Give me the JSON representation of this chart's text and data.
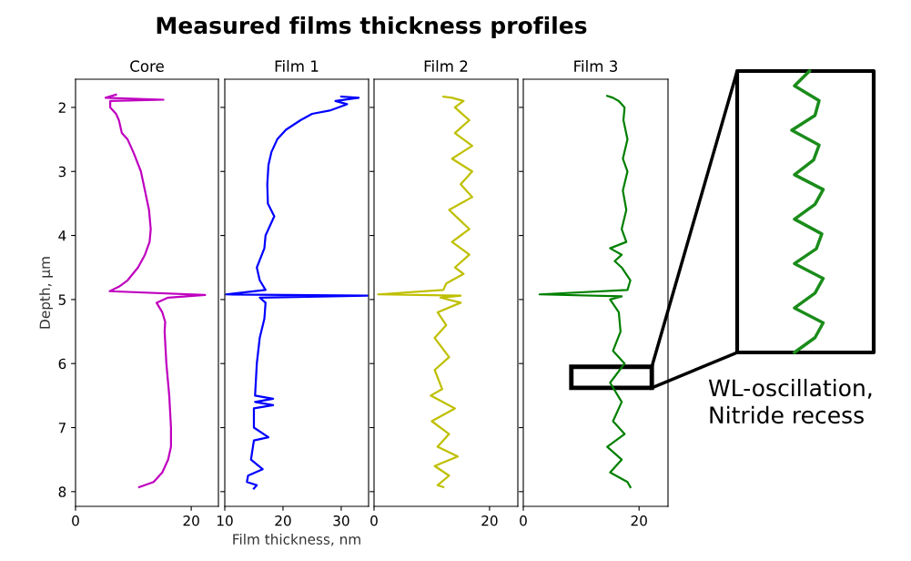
{
  "chart_data": [
    {
      "type": "line",
      "orientation": "horizontal",
      "title": "Core",
      "ylabel": "Depth, μm",
      "annotations": [
        "Measured films thickness profiles"
      ],
      "xlim": [
        0,
        24.7
      ],
      "xticks": [
        0,
        20
      ],
      "ylim": [
        8.23,
        1.56
      ],
      "yticks": [
        2,
        3,
        4,
        5,
        6,
        7,
        8
      ],
      "grid": false,
      "series": [
        {
          "color": "#bf00bf",
          "x": [
            1.8,
            1.85,
            1.88,
            1.9,
            2.0,
            2.1,
            2.2,
            2.4,
            2.5,
            2.7,
            3.0,
            3.3,
            3.6,
            3.9,
            4.1,
            4.3,
            4.5,
            4.7,
            4.8,
            4.87,
            4.93,
            4.97,
            5.05,
            5.2,
            5.35,
            5.5,
            6.0,
            6.5,
            7.0,
            7.3,
            7.5,
            7.7,
            7.85,
            7.93
          ],
          "values": [
            7,
            5.2,
            15.2,
            6,
            6,
            7,
            7.5,
            8,
            9,
            10,
            11.3,
            12,
            12.7,
            13,
            12.8,
            12,
            10.8,
            9,
            7.5,
            5.9,
            22.4,
            16,
            14,
            15,
            15.5,
            15.4,
            15.7,
            16.2,
            16.5,
            16.5,
            16,
            15,
            13.5,
            11
          ]
        }
      ]
    },
    {
      "type": "line",
      "orientation": "horizontal",
      "title": "Film 1",
      "xlabel": "Film thickness, nm",
      "tick_labels": "x",
      "xlim": [
        10,
        34.7
      ],
      "xticks": [
        10,
        20,
        30
      ],
      "ylim": [
        8.23,
        1.56
      ],
      "yticks": [
        2,
        3,
        4,
        5,
        6,
        7,
        8
      ],
      "grid": false,
      "series": [
        {
          "color": "#0000ff",
          "x": [
            1.83,
            1.85,
            1.9,
            1.95,
            2.05,
            2.1,
            2.2,
            2.35,
            2.5,
            2.7,
            2.9,
            3.2,
            3.5,
            3.7,
            4.0,
            4.2,
            4.5,
            4.7,
            4.85,
            4.92,
            4.94,
            4.97,
            5.05,
            5.3,
            5.6,
            6.0,
            6.5,
            6.55,
            6.6,
            6.65,
            6.7,
            7.0,
            7.15,
            7.2,
            7.5,
            7.65,
            7.75,
            7.85,
            7.9,
            7.95
          ],
          "values": [
            30,
            33,
            29,
            31,
            28,
            25,
            23,
            20.5,
            19,
            18,
            17.5,
            17.3,
            17.4,
            18.5,
            17,
            16.8,
            15.5,
            16,
            17,
            10.2,
            34.5,
            16,
            17,
            16.8,
            16,
            15.5,
            15.2,
            18.3,
            15.2,
            18.3,
            15,
            15,
            17.5,
            15,
            14.5,
            16.5,
            14,
            13.8,
            15.5,
            15
          ]
        }
      ]
    },
    {
      "type": "line",
      "orientation": "horizontal",
      "title": "Film 2",
      "tick_labels": "x",
      "xlim": [
        0,
        24.9
      ],
      "xticks": [
        0,
        20
      ],
      "ylim": [
        8.23,
        1.56
      ],
      "yticks": [
        2,
        3,
        4,
        5,
        6,
        7,
        8
      ],
      "grid": false,
      "series": [
        {
          "color": "#bfbf00",
          "x": [
            1.83,
            1.85,
            1.9,
            2.0,
            2.2,
            2.4,
            2.6,
            2.8,
            3.0,
            3.2,
            3.4,
            3.6,
            3.9,
            4.1,
            4.3,
            4.5,
            4.6,
            4.75,
            4.85,
            4.92,
            4.94,
            4.97,
            5.05,
            5.2,
            5.4,
            5.6,
            5.9,
            6.1,
            6.4,
            6.5,
            6.7,
            6.9,
            7.1,
            7.3,
            7.45,
            7.6,
            7.75,
            7.9,
            7.93
          ],
          "values": [
            12,
            13.5,
            15.5,
            14,
            16.5,
            14,
            17,
            13.5,
            17,
            15,
            17,
            13,
            16.5,
            13.5,
            16.5,
            14,
            15.5,
            12.5,
            12,
            0.7,
            15,
            11.5,
            15,
            11,
            12.5,
            10.5,
            13,
            10.5,
            11.8,
            9.8,
            14,
            10,
            13,
            11,
            14.5,
            10.5,
            13,
            11,
            12
          ]
        }
      ]
    },
    {
      "type": "line",
      "orientation": "horizontal",
      "title": "Film 3",
      "tick_labels": "x",
      "annotations": [
        "WL-oscillation,\nNitride recess"
      ],
      "xlim": [
        0,
        25
      ],
      "xticks": [
        0,
        20
      ],
      "ylim": [
        8.23,
        1.56
      ],
      "yticks": [
        2,
        3,
        4,
        5,
        6,
        7,
        8
      ],
      "grid": false,
      "series": [
        {
          "color": "#008000",
          "x": [
            1.82,
            1.85,
            1.9,
            2.0,
            2.2,
            2.5,
            2.8,
            3.0,
            3.3,
            3.6,
            3.9,
            4.1,
            4.2,
            4.3,
            4.4,
            4.5,
            4.7,
            4.85,
            4.92,
            4.95,
            5.0,
            5.2,
            5.5,
            5.8,
            6.0,
            6.3,
            6.6,
            6.9,
            7.1,
            7.3,
            7.5,
            7.7,
            7.85,
            7.93
          ],
          "values": [
            14.5,
            15.5,
            16.5,
            17.5,
            17.3,
            18,
            17.2,
            18,
            17.2,
            17.8,
            17,
            17.8,
            15,
            17,
            15.8,
            17,
            18.5,
            18,
            2.8,
            17,
            15,
            16.5,
            16.8,
            15.5,
            17.5,
            15,
            17,
            15.5,
            17.5,
            14.5,
            17,
            15,
            18,
            18.5
          ]
        }
      ]
    }
  ]
}
